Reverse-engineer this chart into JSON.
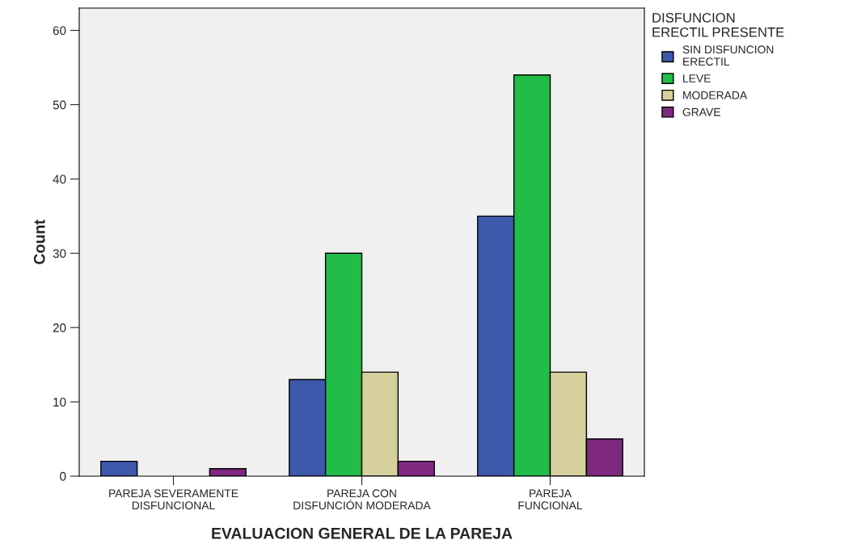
{
  "chart_data": {
    "type": "bar",
    "xlabel": "EVALUACION GENERAL DE LA PAREJA",
    "ylabel": "Count",
    "legend_title": "DISFUNCION ERECTIL PRESENTE",
    "categories": [
      "PAREJA SEVERAMENTE DISFUNCIONAL",
      "PAREJA CON DISFUNCIÓN MODERADA",
      "PAREJA FUNCIONAL"
    ],
    "series": [
      {
        "name": "SIN DISFUNCION ERECTIL",
        "color": "#3e58ac",
        "values": [
          2,
          13,
          35
        ]
      },
      {
        "name": "LEVE",
        "color": "#22bd48",
        "values": [
          null,
          30,
          54
        ]
      },
      {
        "name": "MODERADA",
        "color": "#d6d09c",
        "values": [
          null,
          14,
          14
        ]
      },
      {
        "name": "GRAVE",
        "color": "#7e2880",
        "values": [
          1,
          2,
          5
        ]
      }
    ],
    "ylim": [
      0,
      63
    ],
    "yticks": [
      0,
      10,
      20,
      30,
      40,
      50,
      60
    ],
    "grid": false,
    "legend": "top right"
  }
}
